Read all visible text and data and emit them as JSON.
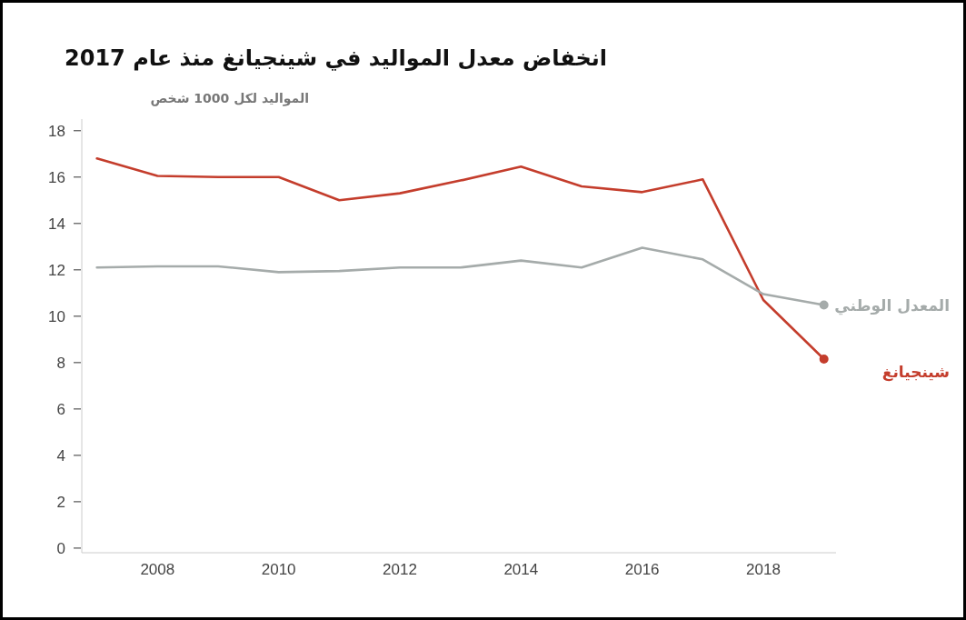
{
  "chart_data": {
    "type": "line",
    "title": "انخفاض معدل المواليد في شينجيانغ منذ عام 2017",
    "ylabel": "المواليد لكل 1000 شخص",
    "x": [
      2007,
      2008,
      2009,
      2010,
      2011,
      2012,
      2013,
      2014,
      2015,
      2016,
      2017,
      2018,
      2019
    ],
    "series": [
      {
        "name": "شينجيانغ",
        "color": "#c43d2c",
        "values": [
          16.8,
          16.05,
          16.0,
          16.0,
          15.0,
          15.3,
          15.85,
          16.45,
          15.6,
          15.35,
          15.9,
          10.7,
          8.15
        ]
      },
      {
        "name": "المعدل الوطني",
        "color": "#a5abaa",
        "values": [
          12.1,
          12.15,
          12.15,
          11.9,
          11.95,
          12.1,
          12.1,
          12.4,
          12.1,
          12.95,
          12.45,
          10.95,
          10.48
        ]
      }
    ],
    "xlim": [
      2006.75,
      2019.2
    ],
    "ylim": [
      -0.2,
      18.5
    ],
    "xticks": [
      2008,
      2010,
      2012,
      2014,
      2016,
      2018
    ],
    "yticks": [
      0,
      2,
      4,
      6,
      8,
      10,
      12,
      14,
      16,
      18
    ],
    "legend": false,
    "grid": false
  }
}
